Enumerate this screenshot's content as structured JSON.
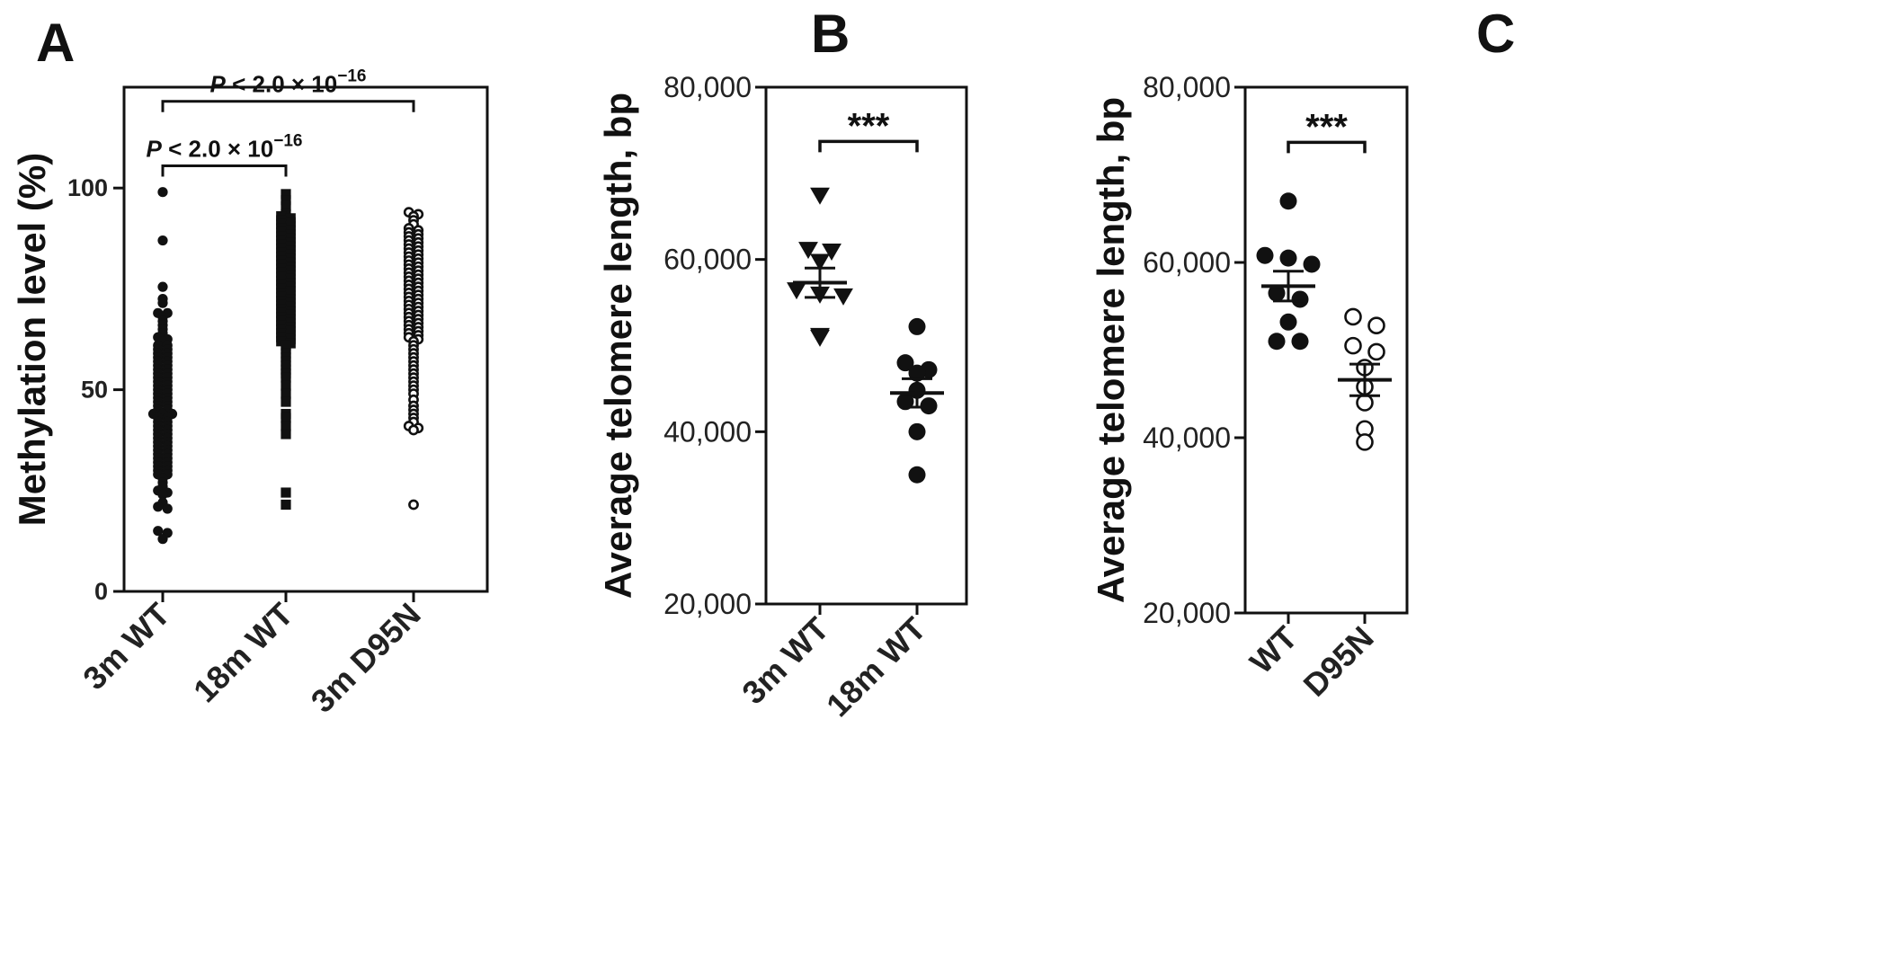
{
  "chart_data": [
    {
      "panel": "A",
      "type": "scatter",
      "ylabel": "Methylation level (%)",
      "ylim": [
        0,
        125
      ],
      "yticks": [
        0,
        50,
        100
      ],
      "categories": [
        "3m WT",
        "18m WT",
        "3m D95N"
      ],
      "markers": [
        "filled-circle",
        "filled-square",
        "open-circle"
      ],
      "comparisons": [
        {
          "from": "3m WT",
          "to": "18m WT",
          "p_prefix": "P",
          "label": " < 2.0 × 10",
          "exponent": "−16"
        },
        {
          "from": "3m WT",
          "to": "3m D95N",
          "p_prefix": "P",
          "label": " < 2.0 × 10",
          "exponent": "−16"
        }
      ],
      "series": [
        {
          "name": "3m WT",
          "values": [
            99,
            87,
            75.5,
            72.5,
            71.5,
            69,
            69,
            68,
            67,
            66,
            65,
            64,
            63,
            62.5,
            62,
            61,
            61,
            60,
            60,
            59,
            59,
            58,
            58,
            57,
            57,
            56,
            56,
            55,
            55,
            54,
            54,
            53,
            53,
            52,
            52,
            51,
            51,
            50,
            50,
            49,
            49,
            48,
            48,
            47,
            47,
            46,
            46,
            45,
            45,
            44,
            44,
            44,
            43,
            43,
            42,
            42,
            41,
            41,
            40,
            40,
            39,
            39,
            38,
            38,
            37,
            37,
            36,
            36,
            35,
            35,
            34,
            34,
            33,
            33,
            32,
            32,
            31,
            31,
            30,
            30,
            29,
            29,
            28,
            27,
            26,
            25,
            24.5,
            24,
            22,
            21,
            20.5,
            15,
            14.5,
            13
          ]
        },
        {
          "name": "18m WT",
          "values": [
            98.5,
            97,
            95.5,
            93.5,
            93,
            92.5,
            92,
            91.5,
            91,
            90.5,
            90,
            89.5,
            89,
            88.5,
            88,
            87.5,
            87,
            86.5,
            86,
            85.5,
            85,
            84.5,
            84,
            83.5,
            83,
            82.5,
            82,
            81.5,
            81,
            80.5,
            80,
            79.5,
            79,
            78.5,
            78,
            77.5,
            77,
            76.5,
            76,
            75.5,
            75,
            74.5,
            74,
            73.5,
            73,
            72.5,
            72,
            71.5,
            71,
            70.5,
            70,
            69.5,
            69,
            68.5,
            68,
            67.5,
            67,
            66.5,
            66,
            65.5,
            65,
            64.5,
            64,
            63.5,
            63,
            62.5,
            62,
            61.5,
            61,
            60,
            59,
            58,
            57,
            56,
            55,
            54,
            53,
            51,
            49,
            47,
            44,
            43,
            41,
            39,
            24.5,
            21.5
          ]
        },
        {
          "name": "3m D95N",
          "values": [
            94,
            93.5,
            93,
            92,
            91,
            90,
            89.5,
            89,
            88.5,
            88,
            87.5,
            87,
            86.5,
            86,
            85.5,
            85,
            84.5,
            84,
            83.5,
            83,
            82.5,
            82,
            81.5,
            81,
            80.5,
            80,
            79.5,
            79,
            78.5,
            78,
            77.5,
            77,
            76.5,
            76,
            75.5,
            75,
            74.5,
            74,
            73.5,
            73,
            72.5,
            72,
            71.5,
            71,
            70.5,
            70,
            69.5,
            69,
            68.5,
            68,
            67.5,
            67,
            66.5,
            66,
            65.5,
            65,
            64.5,
            64,
            63.5,
            63,
            62.5,
            62,
            61,
            60,
            59,
            58,
            57,
            56,
            55,
            54,
            53,
            52,
            51,
            50,
            49,
            47.5,
            46,
            45,
            44,
            43,
            42,
            41,
            40.5,
            40,
            21.5
          ]
        }
      ]
    },
    {
      "panel": "B",
      "type": "scatter",
      "ylabel": "Average telomere length, bp",
      "ylim": [
        20000,
        80000
      ],
      "yticks": [
        "20,000",
        "40,000",
        "60,000",
        "80,000"
      ],
      "categories": [
        "3m WT",
        "18m WT"
      ],
      "markers": [
        "filled-triangle-down",
        "filled-circle"
      ],
      "significance": "***",
      "series": [
        {
          "name": "3m WT",
          "values": [
            67500,
            61200,
            61000,
            59800,
            56500,
            56000,
            55800,
            51200,
            51000
          ],
          "mean": 57300,
          "sem": 1700
        },
        {
          "name": "18m WT",
          "values": [
            52200,
            48000,
            47200,
            46800,
            44800,
            43500,
            43000,
            40000,
            35000
          ],
          "mean": 44500,
          "sem": 1650
        }
      ]
    },
    {
      "panel": "C",
      "type": "scatter",
      "ylabel": "Average telomere length, bp",
      "ylim": [
        20000,
        80000
      ],
      "yticks": [
        "20,000",
        "40,000",
        "60,000",
        "80,000"
      ],
      "categories": [
        "WT",
        "D95N"
      ],
      "markers": [
        "filled-circle",
        "open-circle"
      ],
      "significance": "***",
      "series": [
        {
          "name": "WT",
          "values": [
            67000,
            60800,
            60500,
            59800,
            56500,
            55800,
            53200,
            51000,
            51000
          ],
          "mean": 57300,
          "sem": 1700
        },
        {
          "name": "D95N",
          "values": [
            53800,
            52800,
            50500,
            49800,
            48000,
            45800,
            44000,
            41000,
            39500
          ],
          "mean": 46600,
          "sem": 1800
        }
      ]
    }
  ]
}
